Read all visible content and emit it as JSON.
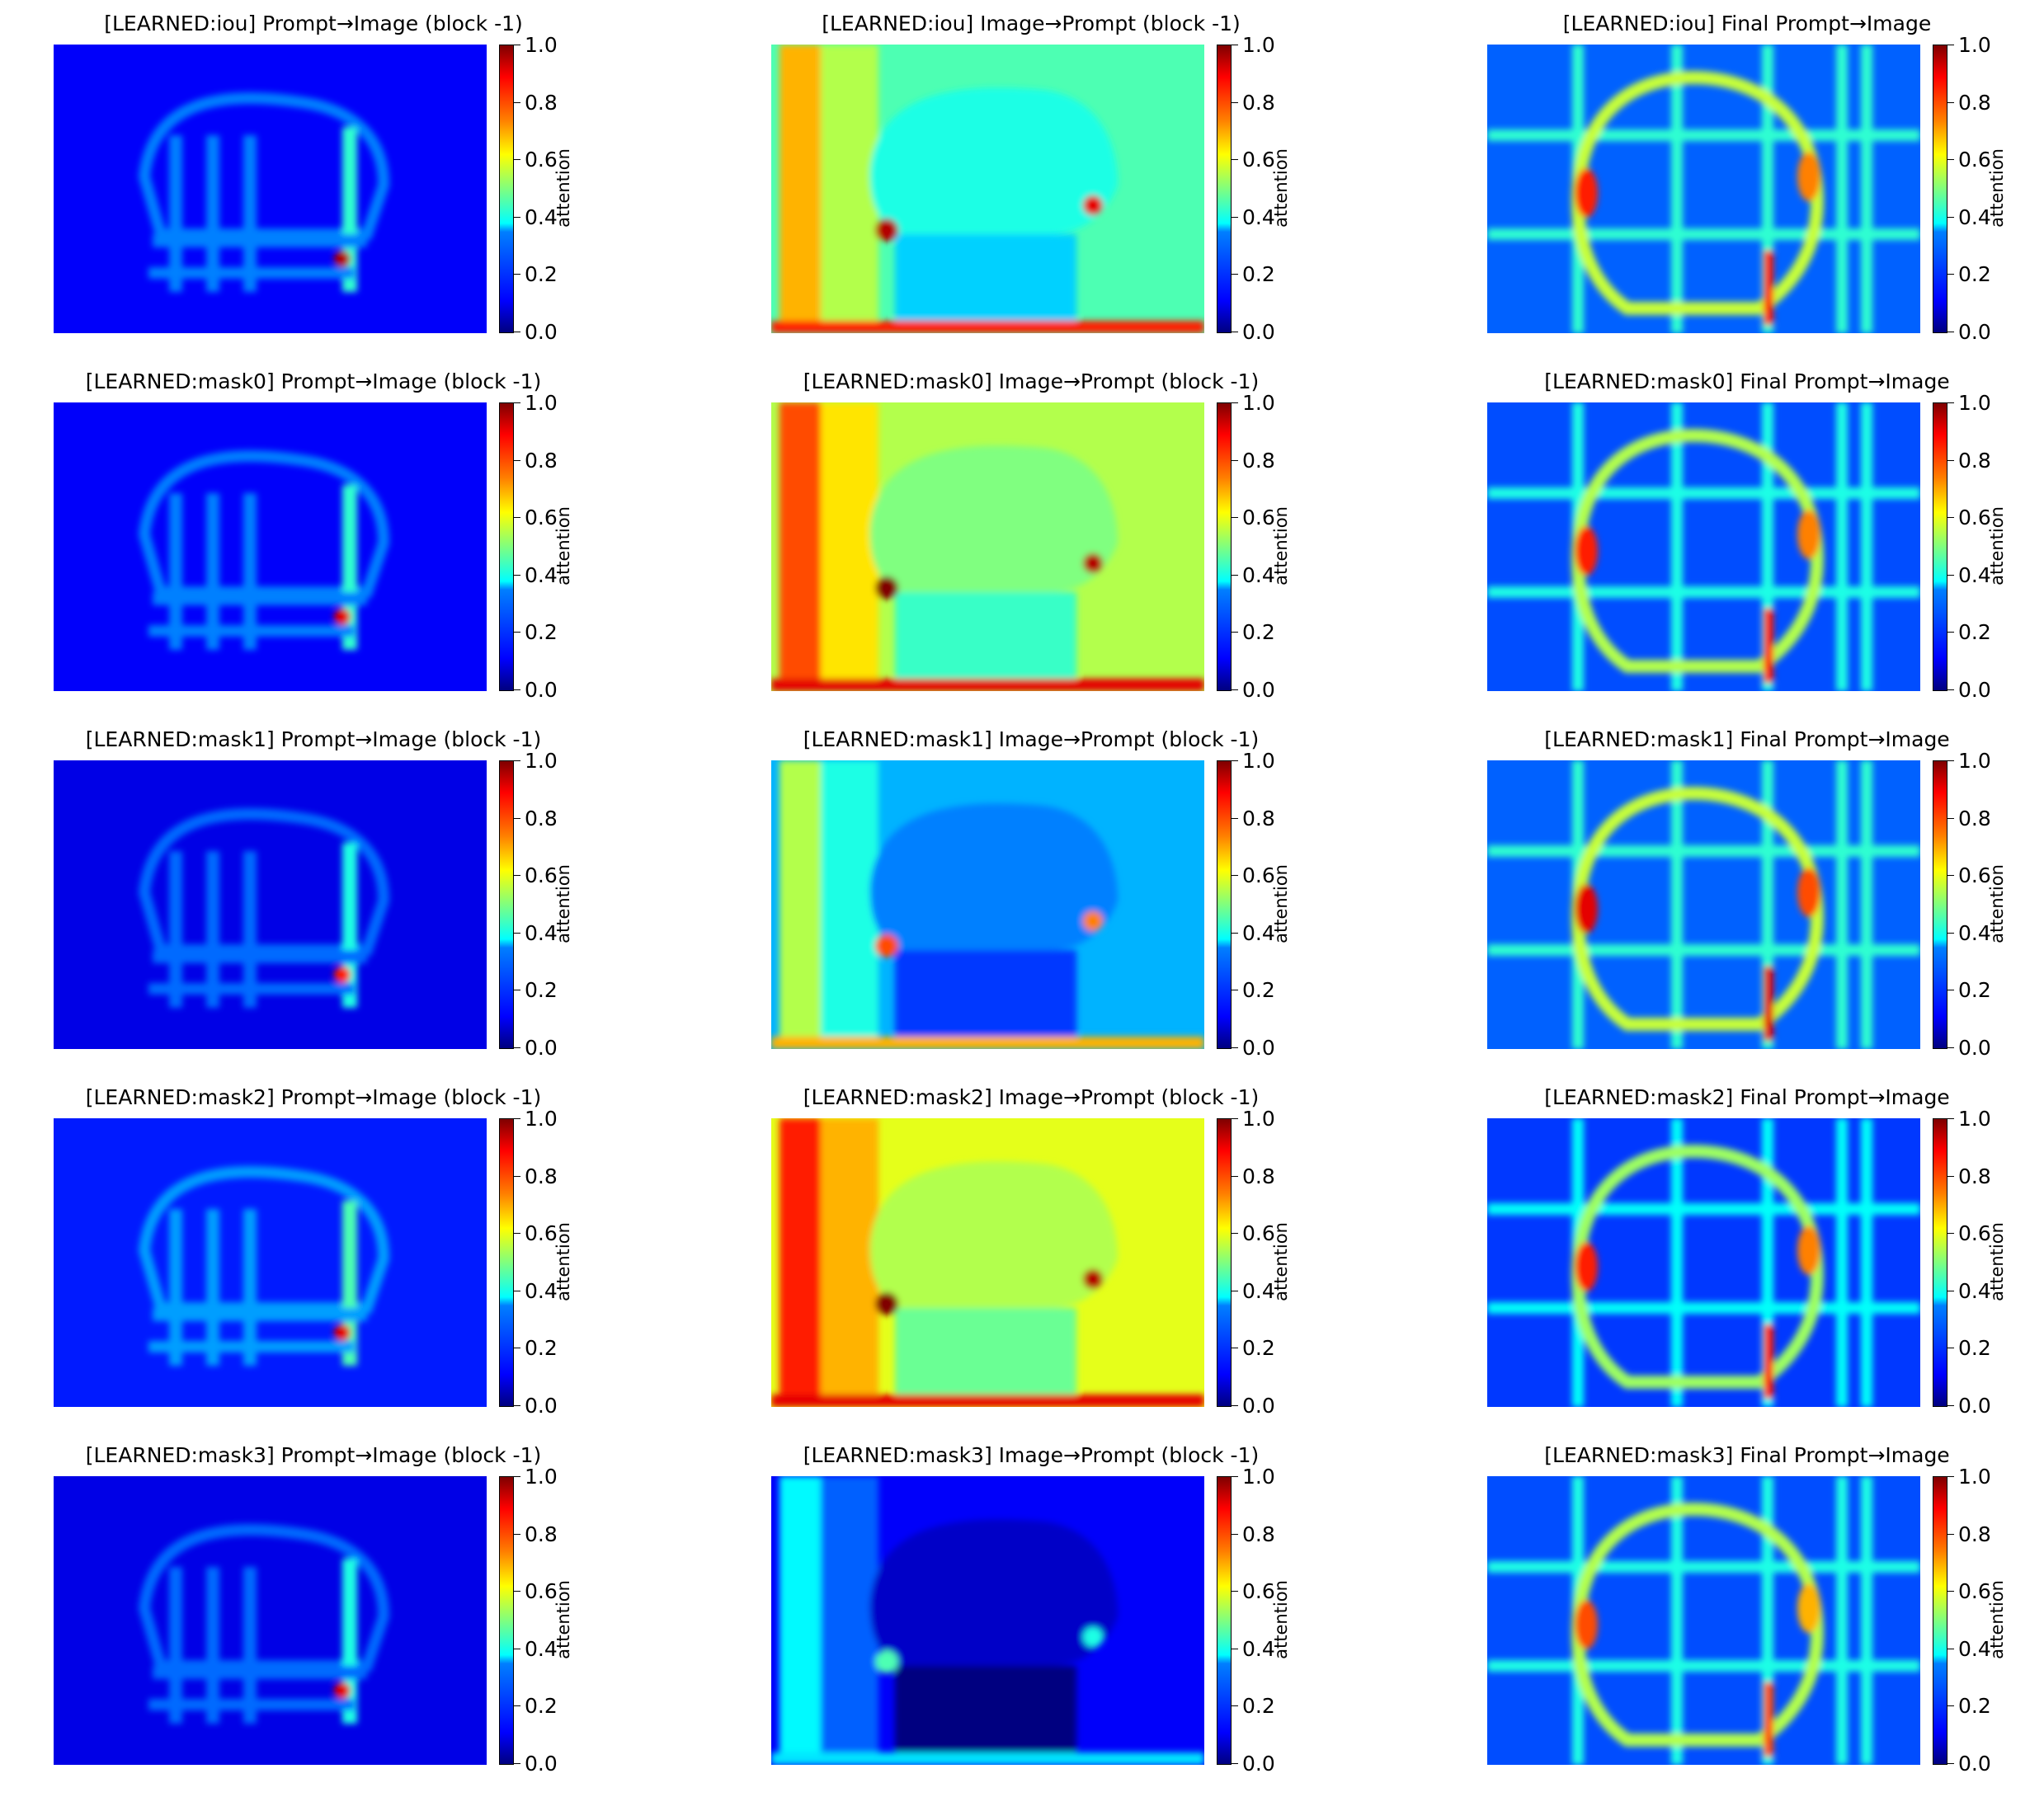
{
  "chart_data": {
    "type": "heatmap",
    "layout": {
      "rows": 5,
      "cols": 3
    },
    "colormap": "jet",
    "colorbar": {
      "label": "attention",
      "ticks": [
        "0.0",
        "0.2",
        "0.4",
        "0.6",
        "0.8",
        "1.0"
      ],
      "range": [
        0,
        1
      ]
    },
    "panels": [
      {
        "title": "[LEARNED:iou] Prompt→Image (block -1)",
        "kind": "p2i",
        "mean": 0.12,
        "peak": 0.95
      },
      {
        "title": "[LEARNED:iou] Image→Prompt (block -1)",
        "kind": "i2p",
        "mean": 0.45,
        "peak": 0.95
      },
      {
        "title": "[LEARNED:iou] Final Prompt→Image",
        "kind": "final",
        "mean": 0.22,
        "peak": 0.85
      },
      {
        "title": "[LEARNED:mask0] Prompt→Image (block -1)",
        "kind": "p2i",
        "mean": 0.12,
        "peak": 0.9
      },
      {
        "title": "[LEARNED:mask0] Image→Prompt (block -1)",
        "kind": "i2p",
        "mean": 0.55,
        "peak": 1.0
      },
      {
        "title": "[LEARNED:mask0] Final Prompt→Image",
        "kind": "final",
        "mean": 0.2,
        "peak": 0.85
      },
      {
        "title": "[LEARNED:mask1] Prompt→Image (block -1)",
        "kind": "p2i",
        "mean": 0.1,
        "peak": 0.85
      },
      {
        "title": "[LEARNED:mask1] Image→Prompt (block -1)",
        "kind": "i2p",
        "mean": 0.3,
        "peak": 0.8
      },
      {
        "title": "[LEARNED:mask1] Final Prompt→Image",
        "kind": "final",
        "mean": 0.22,
        "peak": 0.9
      },
      {
        "title": "[LEARNED:mask2] Prompt→Image (block -1)",
        "kind": "p2i",
        "mean": 0.15,
        "peak": 0.9
      },
      {
        "title": "[LEARNED:mask2] Image→Prompt (block -1)",
        "kind": "i2p",
        "mean": 0.6,
        "peak": 1.0
      },
      {
        "title": "[LEARNED:mask2] Final Prompt→Image",
        "kind": "final",
        "mean": 0.18,
        "peak": 0.85
      },
      {
        "title": "[LEARNED:mask3] Prompt→Image (block -1)",
        "kind": "p2i",
        "mean": 0.1,
        "peak": 0.9
      },
      {
        "title": "[LEARNED:mask3] Image→Prompt (block -1)",
        "kind": "i2p",
        "mean": 0.12,
        "peak": 0.45
      },
      {
        "title": "[LEARNED:mask3] Final Prompt→Image",
        "kind": "final",
        "mean": 0.2,
        "peak": 0.8
      }
    ]
  }
}
